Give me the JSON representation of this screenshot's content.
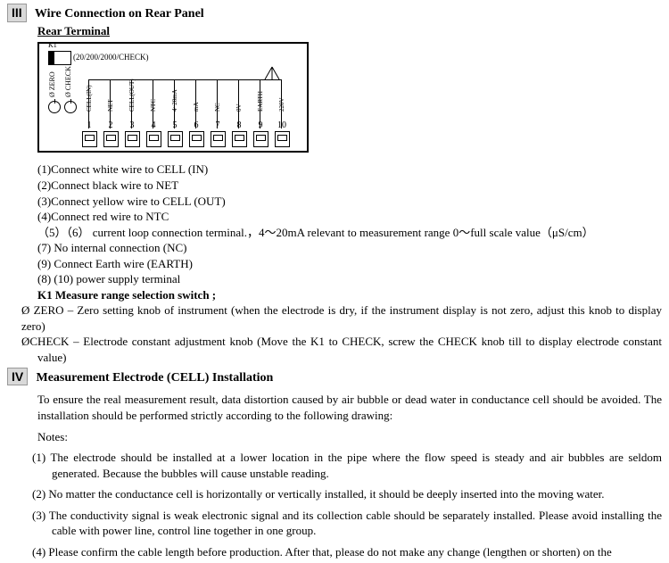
{
  "section3": {
    "num": "III",
    "title": "Wire Connection on Rear Panel",
    "subtitle": "Rear Terminal"
  },
  "diagram": {
    "k1_label": "K1",
    "switch_text": "(20/200/2000/CHECK)",
    "knob1": "ZERO",
    "knob2": "CHECK",
    "term_labels": [
      "CELL(IN)",
      "NET",
      "CELL(OUT)",
      "NTC",
      "4~20mA",
      "mA",
      "NC",
      "0V",
      "EARTH",
      "220V"
    ],
    "terminal_numbers": [
      "1",
      "2",
      "3",
      "4",
      "5",
      "6",
      "7",
      "8",
      "9",
      "10"
    ]
  },
  "wiring": {
    "l1": "(1)Connect white wire to CELL (IN)",
    "l2": "(2)Connect black wire to NET",
    "l3": "(3)Connect yellow wire to CELL (OUT)",
    "l4": "(4)Connect red wire to NTC",
    "l5": "（5）（6） current loop connection terminal.，4～20mA relevant to    measurement range 0～full scale value（μS/cm）",
    "l6": "(7) No internal connection (NC)",
    "l7": "(9) Connect Earth wire (EARTH)",
    "l8": "(8) (10) power supply terminal",
    "k1_bold": "K1    Measure range selection switch ;",
    "zero": "ZERO – Zero setting knob of instrument (when the electrode is dry, if the instrument display is not zero, adjust this knob to display zero)",
    "check": "CHECK – Electrode constant adjustment knob (Move the K1 to CHECK, screw the CHECK knob till to display electrode constant value)"
  },
  "section4": {
    "num": "IV",
    "title": "Measurement Electrode (CELL) Installation",
    "intro": "To ensure the real measurement result, data distortion caused by air bubble or dead water in conductance cell should be avoided. The installation should be performed strictly according to the following drawing:",
    "notes_label": "Notes:",
    "n1": "(1) The electrode should be installed at a lower location in the pipe where the flow speed is steady and air bubbles are seldom generated. Because the bubbles will cause unstable reading.",
    "n2": "(2) No matter the conductance cell is horizontally or vertically installed, it should be deeply inserted into the moving water.",
    "n3": "(3) The conductivity signal is weak electronic signal and its collection cable should be separately installed. Please avoid installing the cable with power line, control line together in one group.",
    "n4": "(4)    Please confirm the cable length before production. After that, please do not make any change (lengthen or shorten) on the"
  }
}
